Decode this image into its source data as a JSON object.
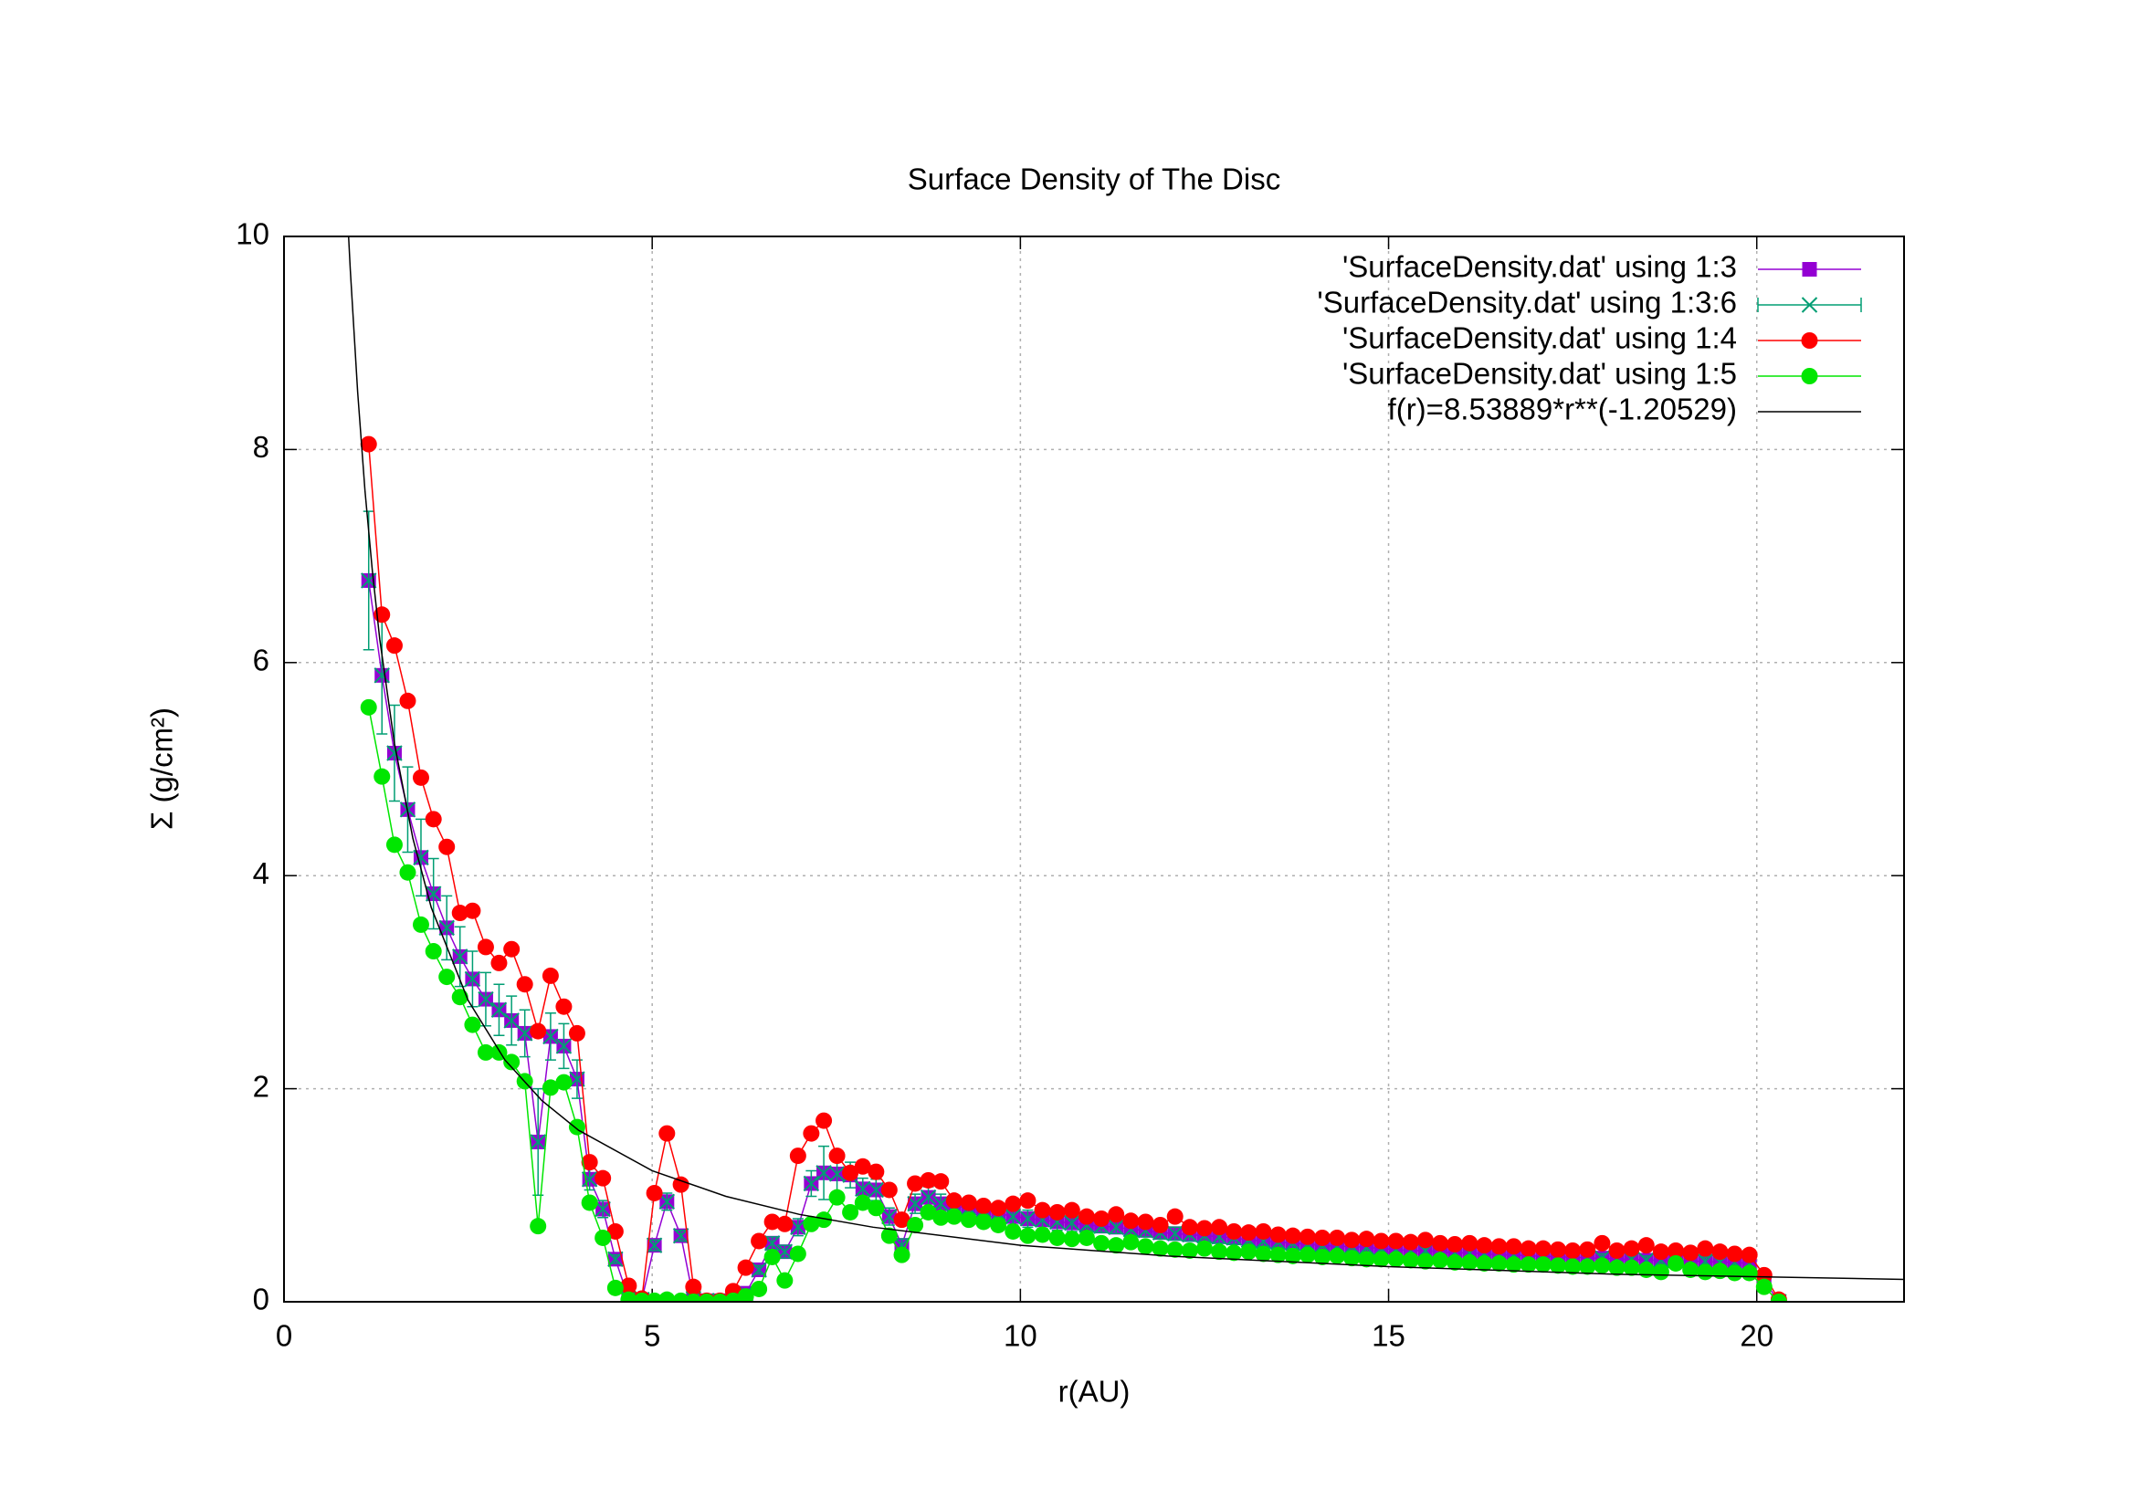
{
  "chart_data": {
    "type": "line",
    "title": "Surface Density of The Disc",
    "xlabel": "r(AU)",
    "ylabel": "Σ (g/cm²)",
    "xlim": [
      0,
      22
    ],
    "ylim": [
      0,
      10
    ],
    "xticks": [
      0,
      5,
      10,
      15,
      20
    ],
    "yticks": [
      0,
      2,
      4,
      6,
      8,
      10
    ],
    "grid": true,
    "legend": "top right",
    "x": [
      1.15,
      1.33,
      1.5,
      1.68,
      1.86,
      2.03,
      2.21,
      2.39,
      2.56,
      2.74,
      2.92,
      3.09,
      3.27,
      3.45,
      3.62,
      3.8,
      3.98,
      4.15,
      4.33,
      4.5,
      4.68,
      4.86,
      5.03,
      5.2,
      5.39,
      5.56,
      5.74,
      5.92,
      6.1,
      6.27,
      6.45,
      6.63,
      6.8,
      6.98,
      7.16,
      7.33,
      7.51,
      7.69,
      7.86,
      8.04,
      8.22,
      8.39,
      8.57,
      8.75,
      8.92,
      9.1,
      9.3,
      9.5,
      9.7,
      9.9,
      10.1,
      10.3,
      10.5,
      10.7,
      10.9,
      11.1,
      11.3,
      11.5,
      11.7,
      11.9,
      12.1,
      12.3,
      12.5,
      12.7,
      12.9,
      13.1,
      13.3,
      13.5,
      13.7,
      13.9,
      14.1,
      14.3,
      14.5,
      14.7,
      14.9,
      15.1,
      15.3,
      15.5,
      15.7,
      15.9,
      16.1,
      16.3,
      16.5,
      16.7,
      16.9,
      17.1,
      17.3,
      17.5,
      17.7,
      17.9,
      18.1,
      18.3,
      18.5,
      18.7,
      18.9,
      19.1,
      19.3,
      19.5,
      19.7,
      19.9,
      20.1,
      20.3
    ],
    "series": [
      {
        "name": "'SurfaceDensity.dat' using 1:3",
        "color": "#9400d3",
        "marker": "square",
        "values": [
          6.77,
          5.88,
          5.15,
          4.62,
          4.17,
          3.83,
          3.51,
          3.24,
          3.03,
          2.84,
          2.74,
          2.64,
          2.52,
          1.5,
          2.49,
          2.4,
          2.09,
          1.15,
          0.87,
          0.4,
          0.03,
          0.02,
          0.53,
          0.94,
          0.62,
          0.03,
          0.01,
          0.01,
          0.02,
          0.08,
          0.3,
          0.55,
          0.47,
          0.7,
          1.11,
          1.21,
          1.2,
          1.19,
          1.06,
          1.05,
          0.8,
          0.53,
          0.92,
          0.98,
          0.92,
          0.9,
          0.88,
          0.86,
          0.83,
          0.8,
          0.78,
          0.77,
          0.75,
          0.74,
          0.72,
          0.71,
          0.7,
          0.68,
          0.67,
          0.65,
          0.64,
          0.63,
          0.62,
          0.61,
          0.6,
          0.58,
          0.57,
          0.56,
          0.55,
          0.54,
          0.53,
          0.52,
          0.52,
          0.51,
          0.5,
          0.49,
          0.48,
          0.48,
          0.47,
          0.46,
          0.46,
          0.45,
          0.44,
          0.44,
          0.43,
          0.43,
          0.42,
          0.42,
          0.41,
          0.41,
          0.4,
          0.4,
          0.39,
          0.39,
          0.39,
          0.38,
          0.38,
          0.37,
          0.37,
          0.36,
          0.2,
          0.0
        ]
      },
      {
        "name": "'SurfaceDensity.dat' using 1:3:6",
        "color": "#009e73",
        "marker": "cross",
        "values": [
          6.77,
          5.88,
          5.15,
          4.62,
          4.17,
          3.83,
          3.51,
          3.24,
          3.03,
          2.84,
          2.74,
          2.64,
          2.52,
          1.5,
          2.49,
          2.4,
          2.09,
          1.15,
          0.87,
          0.4,
          0.03,
          0.02,
          0.53,
          0.94,
          0.62,
          0.03,
          0.01,
          0.01,
          0.02,
          0.08,
          0.3,
          0.55,
          0.47,
          0.7,
          1.11,
          1.21,
          1.2,
          1.19,
          1.06,
          1.05,
          0.8,
          0.53,
          0.92,
          0.98,
          0.92,
          0.9,
          0.88,
          0.86,
          0.83,
          0.8,
          0.78,
          0.77,
          0.75,
          0.74,
          0.72,
          0.71,
          0.7,
          0.68,
          0.67,
          0.65,
          0.64,
          0.63,
          0.62,
          0.61,
          0.6,
          0.58,
          0.57,
          0.56,
          0.55,
          0.54,
          0.53,
          0.52,
          0.52,
          0.51,
          0.5,
          0.49,
          0.48,
          0.48,
          0.47,
          0.46,
          0.46,
          0.45,
          0.44,
          0.44,
          0.43,
          0.43,
          0.42,
          0.42,
          0.41,
          0.41,
          0.4,
          0.4,
          0.39,
          0.39,
          0.39,
          0.38,
          0.38,
          0.37,
          0.37,
          0.36,
          0.2,
          0.0
        ],
        "errors": [
          0.65,
          0.55,
          0.45,
          0.4,
          0.36,
          0.33,
          0.3,
          0.28,
          0.26,
          0.25,
          0.24,
          0.23,
          0.22,
          0.5,
          0.22,
          0.21,
          0.18,
          0.1,
          0.08,
          0.04,
          0.01,
          0.01,
          0.05,
          0.08,
          0.05,
          0.01,
          0.0,
          0.0,
          0.01,
          0.02,
          0.04,
          0.06,
          0.06,
          0.08,
          0.12,
          0.25,
          0.2,
          0.12,
          0.1,
          0.1,
          0.08,
          0.06,
          0.09,
          0.1,
          0.09,
          0.08,
          0.08,
          0.08,
          0.08,
          0.08,
          0.08,
          0.08,
          0.08,
          0.08,
          0.08,
          0.06,
          0.06,
          0.06,
          0.06,
          0.06,
          0.06,
          0.06,
          0.06,
          0.06,
          0.06,
          0.05,
          0.05,
          0.05,
          0.05,
          0.05,
          0.05,
          0.05,
          0.05,
          0.05,
          0.05,
          0.04,
          0.04,
          0.04,
          0.04,
          0.04,
          0.04,
          0.04,
          0.04,
          0.04,
          0.04,
          0.04,
          0.04,
          0.04,
          0.04,
          0.04,
          0.04,
          0.04,
          0.04,
          0.04,
          0.04,
          0.04,
          0.04,
          0.04,
          0.04,
          0.04,
          0.03,
          0.0
        ]
      },
      {
        "name": "'SurfaceDensity.dat' using 1:4",
        "color": "#ff0000",
        "marker": "circle",
        "values": [
          8.05,
          6.45,
          6.16,
          5.64,
          4.92,
          4.53,
          4.27,
          3.65,
          3.67,
          3.33,
          3.18,
          3.31,
          2.98,
          2.54,
          3.06,
          2.77,
          2.52,
          1.31,
          1.16,
          0.66,
          0.15,
          0.03,
          1.02,
          1.58,
          1.1,
          0.14,
          0.01,
          0.01,
          0.1,
          0.32,
          0.57,
          0.75,
          0.73,
          1.37,
          1.58,
          1.7,
          1.37,
          1.21,
          1.27,
          1.22,
          1.05,
          0.77,
          1.11,
          1.14,
          1.13,
          0.95,
          0.93,
          0.9,
          0.88,
          0.92,
          0.95,
          0.86,
          0.84,
          0.86,
          0.8,
          0.78,
          0.82,
          0.76,
          0.75,
          0.72,
          0.8,
          0.7,
          0.69,
          0.7,
          0.66,
          0.65,
          0.66,
          0.63,
          0.62,
          0.61,
          0.6,
          0.6,
          0.58,
          0.59,
          0.57,
          0.57,
          0.56,
          0.58,
          0.55,
          0.54,
          0.55,
          0.53,
          0.52,
          0.52,
          0.5,
          0.5,
          0.49,
          0.48,
          0.49,
          0.55,
          0.48,
          0.5,
          0.53,
          0.47,
          0.48,
          0.46,
          0.5,
          0.47,
          0.45,
          0.44,
          0.25,
          0.02
        ]
      },
      {
        "name": "'SurfaceDensity.dat' using 1:5",
        "color": "#00e600",
        "marker": "circle",
        "values": [
          5.58,
          4.93,
          4.29,
          4.03,
          3.54,
          3.29,
          3.05,
          2.86,
          2.6,
          2.34,
          2.34,
          2.25,
          2.07,
          0.71,
          2.01,
          2.06,
          1.64,
          0.93,
          0.6,
          0.13,
          0.02,
          0.01,
          0.01,
          0.02,
          0.01,
          0.0,
          0.0,
          0.0,
          0.01,
          0.05,
          0.12,
          0.42,
          0.2,
          0.45,
          0.73,
          0.77,
          0.98,
          0.84,
          0.93,
          0.88,
          0.62,
          0.44,
          0.72,
          0.84,
          0.79,
          0.8,
          0.77,
          0.75,
          0.72,
          0.66,
          0.62,
          0.63,
          0.6,
          0.59,
          0.6,
          0.55,
          0.53,
          0.56,
          0.52,
          0.5,
          0.49,
          0.48,
          0.5,
          0.47,
          0.46,
          0.47,
          0.45,
          0.44,
          0.43,
          0.44,
          0.42,
          0.43,
          0.41,
          0.4,
          0.4,
          0.4,
          0.39,
          0.38,
          0.39,
          0.37,
          0.37,
          0.36,
          0.36,
          0.35,
          0.35,
          0.35,
          0.34,
          0.33,
          0.33,
          0.34,
          0.32,
          0.32,
          0.3,
          0.28,
          0.36,
          0.3,
          0.28,
          0.29,
          0.27,
          0.27,
          0.14,
          0.0
        ]
      },
      {
        "name": "f(r)=8.53889*r**(-1.20529)",
        "color": "#000000",
        "marker": "none",
        "x": [
          0.877,
          0.9,
          1,
          1.1,
          1.2,
          1.3,
          1.5,
          1.75,
          2,
          2.5,
          3,
          3.5,
          4,
          5,
          6,
          7,
          8,
          10,
          12,
          15,
          18,
          22
        ],
        "values": [
          10.0,
          9.69,
          8.54,
          7.61,
          6.86,
          6.22,
          5.24,
          4.35,
          3.7,
          2.83,
          2.27,
          1.89,
          1.61,
          1.23,
          0.99,
          0.82,
          0.7,
          0.53,
          0.43,
          0.33,
          0.26,
          0.21
        ]
      }
    ]
  }
}
